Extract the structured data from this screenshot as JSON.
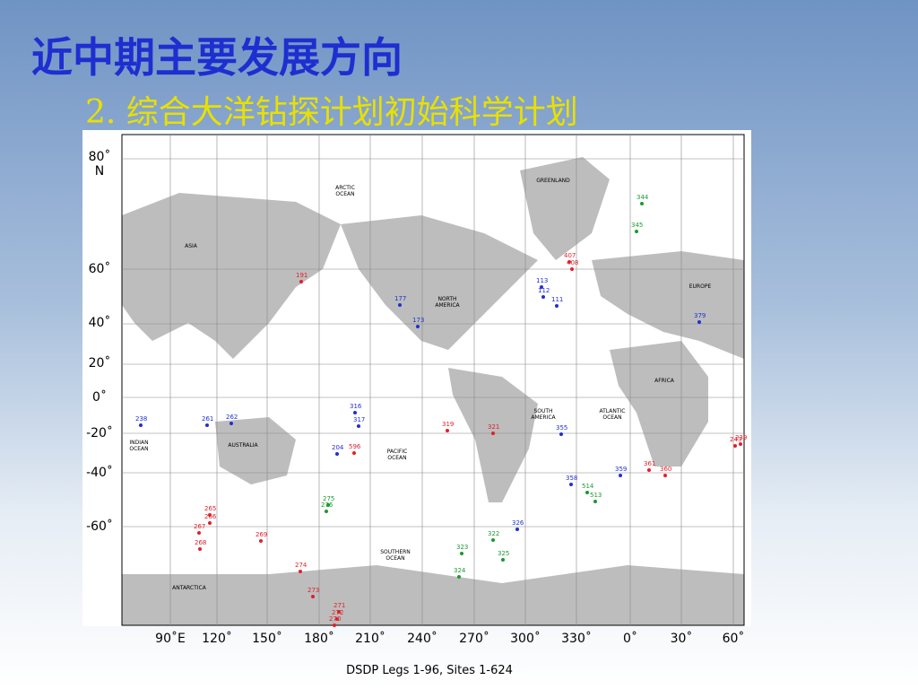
{
  "title": "近中期主要发展方向",
  "subtitle": "2. 综合大洋钻探计划初始科学计划",
  "map": {
    "lat_labels": [
      "80˚ N",
      "60˚",
      "40˚",
      "20˚",
      "0˚",
      "-20˚",
      "-40˚",
      "-60˚"
    ],
    "lon_labels": [
      "90˚E",
      "120˚",
      "150˚",
      "180˚",
      "210˚",
      "240˚",
      "270˚",
      "300˚",
      "330˚",
      "0˚",
      "30˚",
      "60˚"
    ],
    "regions": [
      "ARCTIC OCEAN",
      "GREENLAND",
      "ASIA",
      "NORTH AMERICA",
      "EUROPE",
      "AFRICA",
      "SOUTH AMERICA",
      "ATLANTIC OCEAN",
      "AUSTRALIA",
      "INDIAN OCEAN",
      "PACIFIC OCEAN",
      "SOUTHERN OCEAN",
      "ANTARCTICA"
    ],
    "sites": [
      {
        "label": "344",
        "color": "#1a9a30"
      },
      {
        "label": "345",
        "color": "#1a9a30"
      },
      {
        "label": "191",
        "color": "#e0202a"
      },
      {
        "label": "177",
        "color": "#2030d0"
      },
      {
        "label": "111",
        "color": "#2030d0"
      },
      {
        "label": "113",
        "color": "#2030d0"
      },
      {
        "label": "112",
        "color": "#2030d0"
      },
      {
        "label": "407",
        "color": "#e0202a"
      },
      {
        "label": "408",
        "color": "#e0202a"
      },
      {
        "label": "173",
        "color": "#2030d0"
      },
      {
        "label": "379",
        "color": "#2030d0"
      },
      {
        "label": "238",
        "color": "#2030d0"
      },
      {
        "label": "261",
        "color": "#2030d0"
      },
      {
        "label": "262",
        "color": "#2030d0"
      },
      {
        "label": "316",
        "color": "#2030d0"
      },
      {
        "label": "317",
        "color": "#2030d0"
      },
      {
        "label": "319",
        "color": "#e0202a"
      },
      {
        "label": "321",
        "color": "#e0202a"
      },
      {
        "label": "204",
        "color": "#2030d0"
      },
      {
        "label": "596",
        "color": "#e0202a"
      },
      {
        "label": "275",
        "color": "#1a9a30"
      },
      {
        "label": "276",
        "color": "#1a9a30"
      },
      {
        "label": "265",
        "color": "#e0202a"
      },
      {
        "label": "266",
        "color": "#e0202a"
      },
      {
        "label": "267",
        "color": "#e0202a"
      },
      {
        "label": "268",
        "color": "#e0202a"
      },
      {
        "label": "269",
        "color": "#e0202a"
      },
      {
        "label": "274",
        "color": "#e0202a"
      },
      {
        "label": "273",
        "color": "#e0202a"
      },
      {
        "label": "271",
        "color": "#e0202a"
      },
      {
        "label": "272",
        "color": "#e0202a"
      },
      {
        "label": "270",
        "color": "#e0202a"
      },
      {
        "label": "323",
        "color": "#1a9a30"
      },
      {
        "label": "324",
        "color": "#1a9a30"
      },
      {
        "label": "322",
        "color": "#1a9a30"
      },
      {
        "label": "325",
        "color": "#1a9a30"
      },
      {
        "label": "326",
        "color": "#2030d0"
      },
      {
        "label": "358",
        "color": "#2030d0"
      },
      {
        "label": "514",
        "color": "#1a9a30"
      },
      {
        "label": "513",
        "color": "#1a9a30"
      },
      {
        "label": "355",
        "color": "#2030d0"
      },
      {
        "label": "359",
        "color": "#2030d0"
      },
      {
        "label": "361",
        "color": "#e0202a"
      },
      {
        "label": "360",
        "color": "#e0202a"
      },
      {
        "label": "243",
        "color": "#e0202a"
      },
      {
        "label": "239",
        "color": "#e0202a"
      }
    ]
  },
  "caption": "DSDP Legs 1-96, Sites 1-624"
}
